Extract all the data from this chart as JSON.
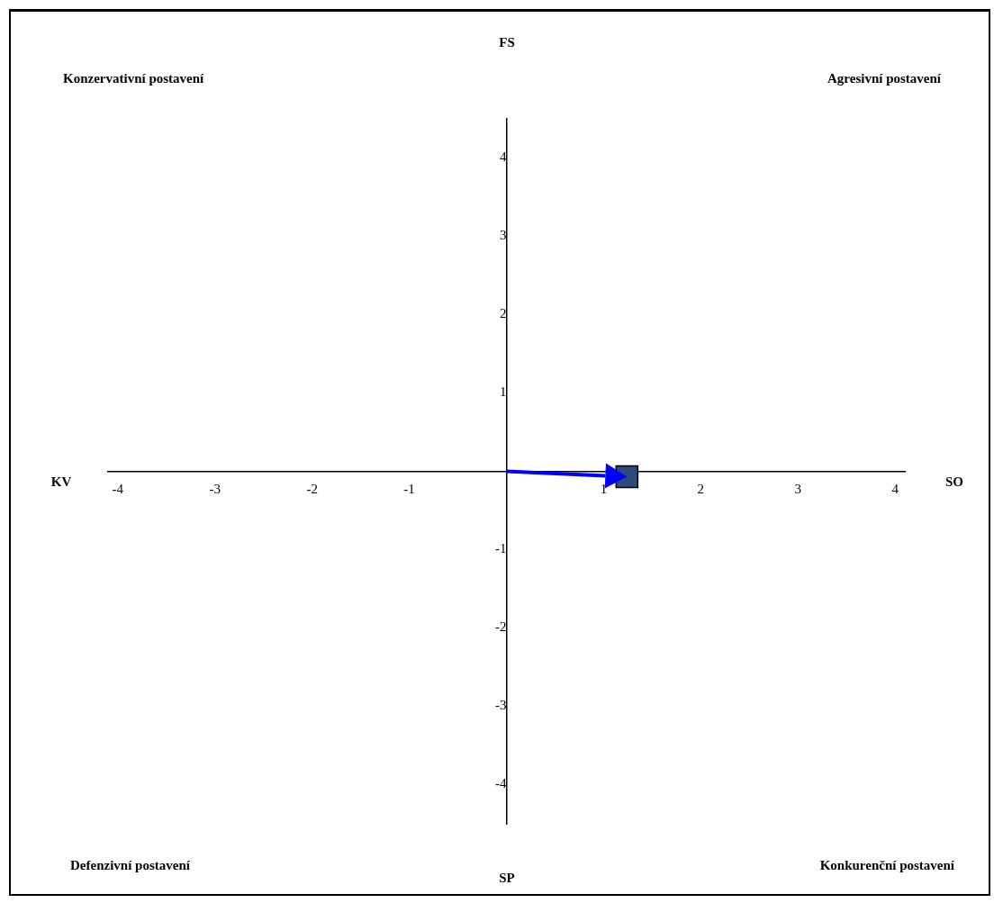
{
  "chart_data": {
    "type": "scatter",
    "x": [
      1.24
    ],
    "values": [
      -0.07
    ],
    "color": "#2f4b7c",
    "marker": "square",
    "xlim": [
      -4.1,
      4.1
    ],
    "ylim": [
      -4.5,
      4.5
    ],
    "xticks": [
      -4,
      -3,
      -2,
      -1,
      1,
      2,
      3,
      4
    ],
    "yticks": [
      -4,
      -3,
      -2,
      -1,
      1,
      2,
      3,
      4
    ],
    "grid": false,
    "annotations": [
      "Konzervativní postavení",
      "FS",
      "Agresivní postavení",
      "KV",
      "SO",
      "Defenzivní postavení",
      "SP",
      "Konkurenční postavení"
    ]
  }
}
